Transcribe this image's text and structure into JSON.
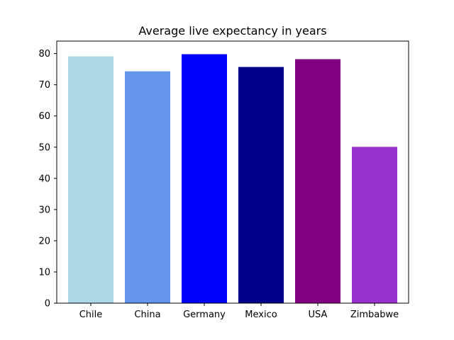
{
  "chart_data": {
    "type": "bar",
    "title": "Average live expectancy in years",
    "xlabel": "",
    "ylabel": "",
    "categories": [
      "Chile",
      "China",
      "Germany",
      "Mexico",
      "USA",
      "Zimbabwe"
    ],
    "values": [
      79.1,
      74.3,
      79.8,
      75.7,
      78.2,
      50.1
    ],
    "colors": [
      "#add8e6",
      "#6495ed",
      "#0000ff",
      "#00008b",
      "#800080",
      "#9932cc"
    ],
    "ylim": [
      0,
      84
    ],
    "yticks": [
      0,
      10,
      20,
      30,
      40,
      50,
      60,
      70,
      80
    ],
    "grid": false,
    "legend": "none"
  }
}
